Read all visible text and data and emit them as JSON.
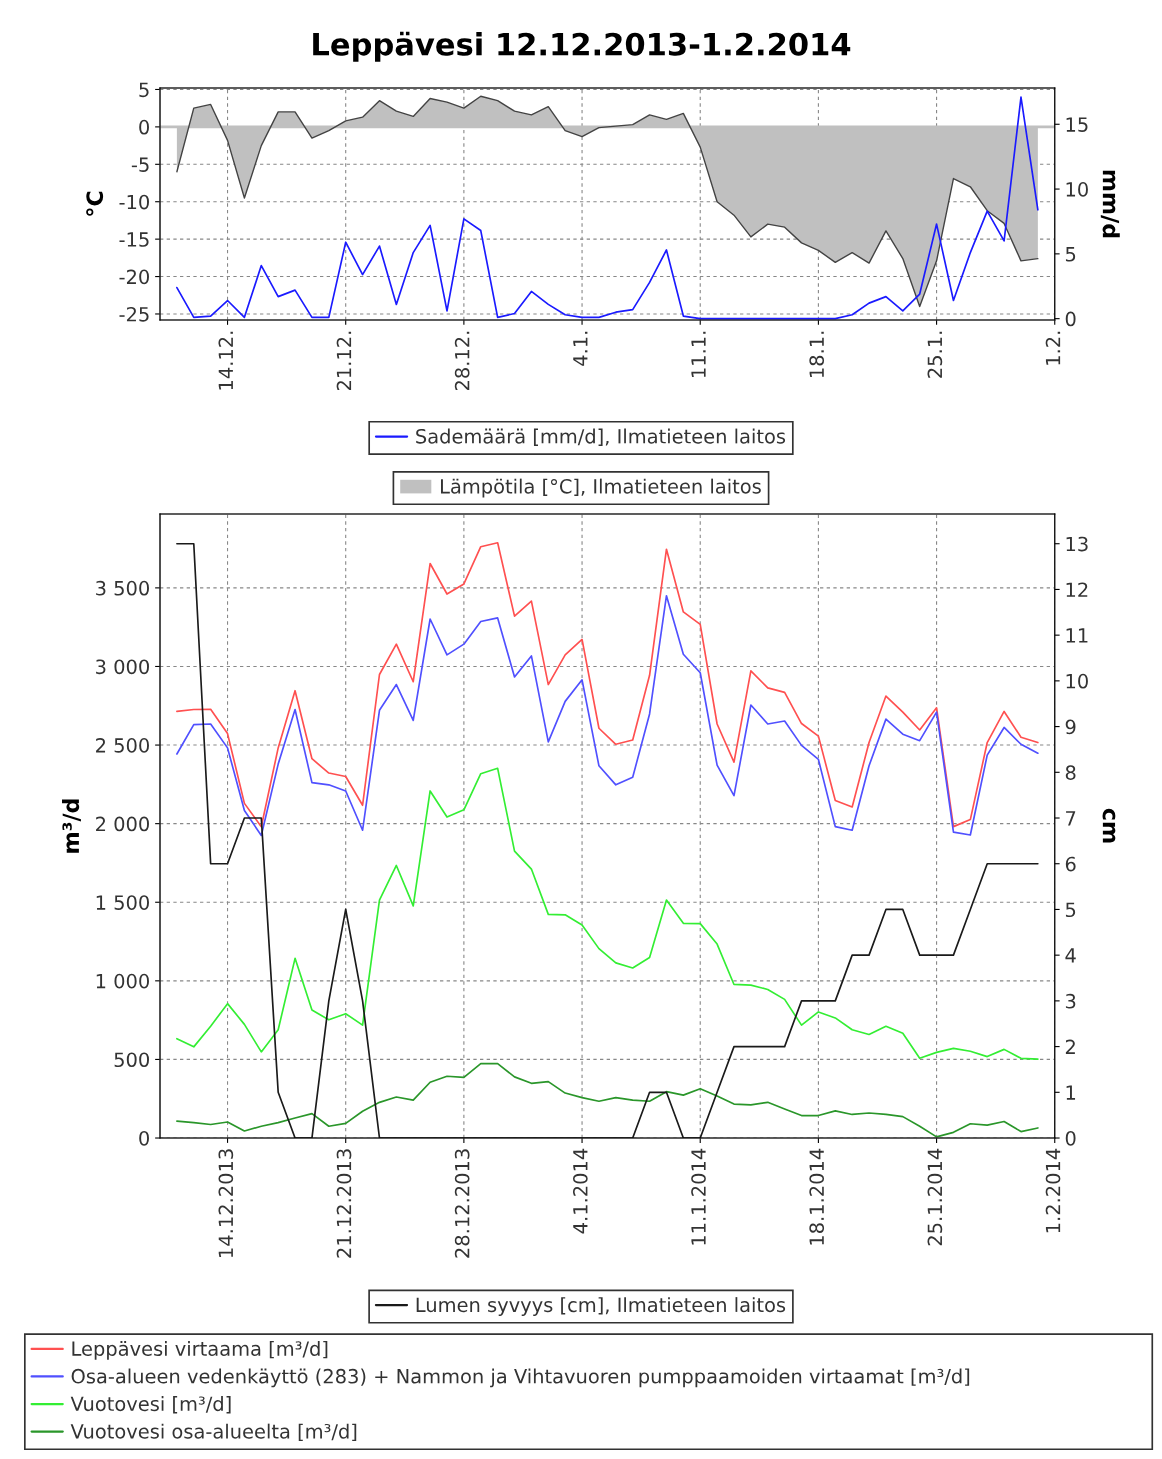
{
  "chart_data": [
    {
      "type": "line",
      "title": "Leppävesi 12.12.2013-1.2.2014",
      "ylabel": "°C",
      "y2label": "mm/d",
      "grid": true,
      "legend": "bottom",
      "marker": "none",
      "line_style": "solid",
      "x": [
        "2013-12-11",
        "2013-12-12",
        "2013-12-13",
        "2013-12-14",
        "2013-12-15",
        "2013-12-16",
        "2013-12-17",
        "2013-12-18",
        "2013-12-19",
        "2013-12-20",
        "2013-12-21",
        "2013-12-22",
        "2013-12-23",
        "2013-12-24",
        "2013-12-25",
        "2013-12-26",
        "2013-12-27",
        "2013-12-28",
        "2013-12-29",
        "2013-12-30",
        "2013-12-31",
        "2014-01-01",
        "2014-01-02",
        "2014-01-03",
        "2014-01-04",
        "2014-01-05",
        "2014-01-06",
        "2014-01-07",
        "2014-01-08",
        "2014-01-09",
        "2014-01-10",
        "2014-01-11",
        "2014-01-12",
        "2014-01-13",
        "2014-01-14",
        "2014-01-15",
        "2014-01-16",
        "2014-01-17",
        "2014-01-18",
        "2014-01-19",
        "2014-01-20",
        "2014-01-21",
        "2014-01-22",
        "2014-01-23",
        "2014-01-24",
        "2014-01-25",
        "2014-01-26",
        "2014-01-27",
        "2014-01-28",
        "2014-01-29",
        "2014-01-30",
        "2014-01-31"
      ],
      "xlim": [
        "2013-12-10",
        "2014-02-01"
      ],
      "xticks": [
        {
          "value": "2013-12-14",
          "label": "14.12."
        },
        {
          "value": "2013-12-21",
          "label": "21.12."
        },
        {
          "value": "2013-12-28",
          "label": "28.12."
        },
        {
          "value": "2014-01-04",
          "label": "4.1."
        },
        {
          "value": "2014-01-11",
          "label": "11.1."
        },
        {
          "value": "2014-01-18",
          "label": "18.1."
        },
        {
          "value": "2014-01-25",
          "label": "25.1."
        },
        {
          "value": "2014-02-01",
          "label": "1.2."
        }
      ],
      "ylim": [
        -25.8,
        5.2
      ],
      "yticks": [
        5,
        0,
        -5,
        -10,
        -15,
        -20,
        -25
      ],
      "y2lim": [
        -0.1,
        17.8
      ],
      "y2ticks": [
        0,
        5,
        10,
        15
      ],
      "series": [
        {
          "name": "Sademäärä [mm/d], Ilmatieteen laitos",
          "axis": "y2",
          "color": "#1a1aff",
          "values": [
            2.4,
            0.1,
            0.2,
            1.4,
            0.1,
            4.1,
            1.7,
            2.2,
            0.1,
            0.1,
            5.9,
            3.4,
            5.6,
            1.1,
            5.1,
            7.2,
            0.6,
            7.7,
            6.8,
            0.1,
            0.4,
            2.1,
            1.1,
            0.3,
            0.1,
            0.1,
            0.5,
            0.7,
            2.8,
            5.3,
            0.2,
            0,
            0,
            0,
            0,
            0,
            0,
            0,
            0,
            0,
            0.3,
            1.2,
            1.7,
            0.6,
            1.9,
            7.3,
            1.4,
            5.1,
            8.3,
            6.0,
            17.1,
            8.4
          ]
        },
        {
          "name": "Lämpötila [°C], Ilmatieteen laitos",
          "type": "area",
          "axis": "y",
          "color": "#c0c0c0",
          "values": [
            -6.0,
            2.5,
            3.0,
            -1.8,
            -9.5,
            -2.5,
            2.0,
            2.0,
            -1.5,
            -0.5,
            0.8,
            1.3,
            3.5,
            2.1,
            1.4,
            3.8,
            3.3,
            2.5,
            4.1,
            3.5,
            2.1,
            1.6,
            2.7,
            -0.5,
            -1.3,
            -0.1,
            0.1,
            0.3,
            1.6,
            1.0,
            1.8,
            -2.7,
            -10.0,
            -11.8,
            -14.7,
            -13.0,
            -13.4,
            -15.5,
            -16.5,
            -18.1,
            -16.8,
            -18.2,
            -13.9,
            -17.6,
            -24.0,
            -17.9,
            -6.9,
            -8.0,
            -11.2,
            -12.9,
            -17.9,
            -17.6
          ]
        }
      ]
    },
    {
      "type": "line",
      "ylabel": "m³/d",
      "y2label": "cm",
      "grid": true,
      "legend": "bottom",
      "marker": "none",
      "line_style": "solid",
      "x": [
        "2013-12-11",
        "2013-12-12",
        "2013-12-13",
        "2013-12-14",
        "2013-12-15",
        "2013-12-16",
        "2013-12-17",
        "2013-12-18",
        "2013-12-19",
        "2013-12-20",
        "2013-12-21",
        "2013-12-22",
        "2013-12-23",
        "2013-12-24",
        "2013-12-25",
        "2013-12-26",
        "2013-12-27",
        "2013-12-28",
        "2013-12-29",
        "2013-12-30",
        "2013-12-31",
        "2014-01-01",
        "2014-01-02",
        "2014-01-03",
        "2014-01-04",
        "2014-01-05",
        "2014-01-06",
        "2014-01-07",
        "2014-01-08",
        "2014-01-09",
        "2014-01-10",
        "2014-01-11",
        "2014-01-12",
        "2014-01-13",
        "2014-01-14",
        "2014-01-15",
        "2014-01-16",
        "2014-01-17",
        "2014-01-18",
        "2014-01-19",
        "2014-01-20",
        "2014-01-21",
        "2014-01-22",
        "2014-01-23",
        "2014-01-24",
        "2014-01-25",
        "2014-01-26",
        "2014-01-27",
        "2014-01-28",
        "2014-01-29",
        "2014-01-30",
        "2014-01-31"
      ],
      "xlim": [
        "2013-12-10",
        "2014-02-01"
      ],
      "xticks": [
        {
          "value": "2013-12-14",
          "label": "14.12.2013"
        },
        {
          "value": "2013-12-21",
          "label": "21.12.2013"
        },
        {
          "value": "2013-12-28",
          "label": "28.12.2013"
        },
        {
          "value": "2014-01-04",
          "label": "4.1.2014"
        },
        {
          "value": "2014-01-11",
          "label": "11.1.2014"
        },
        {
          "value": "2014-01-18",
          "label": "18.1.2014"
        },
        {
          "value": "2014-01-25",
          "label": "25.1.2014"
        },
        {
          "value": "2014-02-01",
          "label": "1.2.2014"
        }
      ],
      "ylim": [
        0,
        3970
      ],
      "yticks": [
        0,
        500,
        {
          "value": 1000,
          "label": "1 000"
        },
        {
          "value": 1500,
          "label": "1 500"
        },
        {
          "value": 2000,
          "label": "2 000"
        },
        {
          "value": 2500,
          "label": "2 500"
        },
        {
          "value": 3000,
          "label": "3 000"
        },
        {
          "value": 3500,
          "label": "3 500"
        }
      ],
      "y2lim": [
        0,
        13.65
      ],
      "y2ticks": [
        0,
        1,
        2,
        3,
        4,
        5,
        6,
        7,
        8,
        9,
        10,
        11,
        12,
        13
      ],
      "series": [
        {
          "name": "Lumen syvyys [cm], Ilmatieteen laitos",
          "axis": "y2",
          "color": "#1a1a1a",
          "values": [
            13,
            13,
            6,
            6,
            7,
            7,
            1,
            0,
            0,
            3,
            5,
            3,
            0,
            0,
            0,
            0,
            0,
            0,
            0,
            0,
            0,
            0,
            0,
            0,
            0,
            0,
            0,
            0,
            1,
            1,
            0,
            0,
            1,
            2,
            2,
            2,
            2,
            3,
            3,
            3,
            4,
            4,
            5,
            5,
            4,
            4,
            4,
            5,
            6,
            6,
            6,
            6
          ]
        },
        {
          "name": "Leppävesi virtaama [m³/d]",
          "axis": "y",
          "color": "#ff5050",
          "values": [
            2714,
            2726,
            2728,
            2573,
            2129,
            1980,
            2482,
            2846,
            2413,
            2322,
            2300,
            2117,
            2949,
            3142,
            2903,
            3655,
            3461,
            3525,
            3762,
            3787,
            3320,
            3416,
            2885,
            3074,
            3172,
            2607,
            2505,
            2532,
            2944,
            3746,
            3347,
            3268,
            2634,
            2391,
            2972,
            2864,
            2835,
            2637,
            2557,
            2147,
            2106,
            2516,
            2812,
            2710,
            2596,
            2737,
            1981,
            2026,
            2516,
            2714,
            2550,
            2516
          ]
        },
        {
          "name": "Osa-alueen vedenkäyttö (283) + Nammon ja Vihtavuoren pumppaamoiden virtaamat [m³/d]",
          "axis": "y",
          "color": "#5050ff",
          "values": [
            2443,
            2630,
            2634,
            2482,
            2084,
            1925,
            2379,
            2726,
            2261,
            2247,
            2208,
            1958,
            2721,
            2885,
            2657,
            3302,
            3074,
            3142,
            3286,
            3309,
            2933,
            3067,
            2520,
            2778,
            2915,
            2368,
            2247,
            2295,
            2698,
            3450,
            3078,
            2960,
            2372,
            2178,
            2755,
            2634,
            2653,
            2498,
            2409,
            1981,
            1958,
            2368,
            2665,
            2569,
            2528,
            2710,
            1946,
            1928,
            2436,
            2612,
            2505,
            2448
          ]
        },
        {
          "name": "Vuotovesi [m³/d]",
          "axis": "y",
          "color": "#33ee33",
          "values": [
            632,
            580,
            711,
            855,
            723,
            548,
            689,
            1143,
            814,
            752,
            791,
            718,
            1514,
            1734,
            1477,
            2208,
            2042,
            2088,
            2318,
            2352,
            1825,
            1711,
            1423,
            1420,
            1355,
            1205,
            1114,
            1082,
            1148,
            1514,
            1366,
            1364,
            1234,
            977,
            973,
            945,
            882,
            718,
            802,
            764,
            689,
            659,
            711,
            666,
            507,
            545,
            570,
            552,
            518,
            564,
            507,
            502
          ]
        },
        {
          "name": "Vuotovesi osa-alueelta [m³/d]",
          "axis": "y",
          "color": "#2a962a",
          "values": [
            107,
            98,
            86,
            102,
            45,
            75,
            98,
            127,
            155,
            75,
            93,
            170,
            227,
            261,
            241,
            355,
            393,
            386,
            473,
            473,
            389,
            348,
            359,
            286,
            257,
            234,
            257,
            241,
            234,
            295,
            273,
            314,
            268,
            216,
            211,
            227,
            184,
            143,
            143,
            173,
            150,
            159,
            150,
            136,
            75,
            7,
            36,
            91,
            82,
            105,
            41,
            64
          ]
        }
      ]
    }
  ]
}
